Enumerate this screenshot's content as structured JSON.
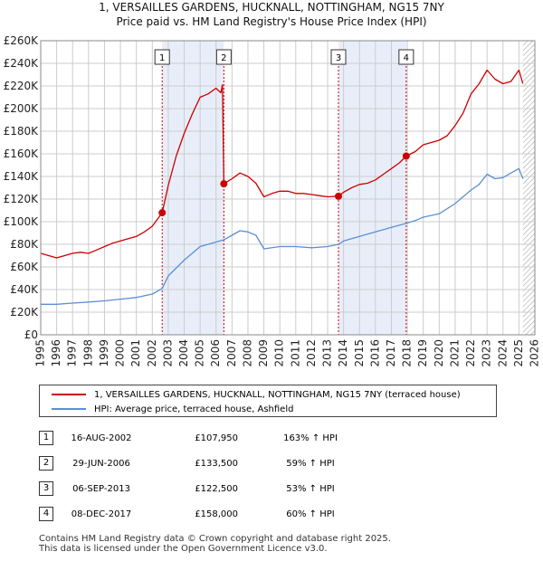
{
  "title": "1, VERSAILLES GARDENS, HUCKNALL, NOTTINGHAM, NG15 7NY",
  "subtitle": "Price paid vs. HM Land Registry's House Price Index (HPI)",
  "colors": {
    "property": "#cc0000",
    "hpi": "#5b8fd4",
    "shade": "#e8eef9",
    "grid": "#cccccc",
    "marker_line": "#cc0000",
    "future_hatch": "#999999"
  },
  "chart_data": {
    "type": "line",
    "title": "1, VERSAILLES GARDENS, HUCKNALL, NOTTINGHAM, NG15 7NY",
    "subtitle": "Price paid vs. HM Land Registry's House Price Index (HPI)",
    "xlabel": "",
    "ylabel": "",
    "xlim": [
      1995,
      2026
    ],
    "ylim": [
      0,
      260000
    ],
    "grid": true,
    "y_ticks": [
      0,
      20000,
      40000,
      60000,
      80000,
      100000,
      120000,
      140000,
      160000,
      180000,
      200000,
      220000,
      240000,
      260000
    ],
    "y_tick_labels": [
      "£0",
      "£20K",
      "£40K",
      "£60K",
      "£80K",
      "£100K",
      "£120K",
      "£140K",
      "£160K",
      "£180K",
      "£200K",
      "£220K",
      "£240K",
      "£260K"
    ],
    "x_ticks": [
      1995,
      1996,
      1997,
      1998,
      1999,
      2000,
      2001,
      2002,
      2003,
      2004,
      2005,
      2006,
      2007,
      2008,
      2009,
      2010,
      2011,
      2012,
      2013,
      2014,
      2015,
      2016,
      2017,
      2018,
      2019,
      2020,
      2021,
      2022,
      2023,
      2024,
      2025,
      2026
    ],
    "x_tick_labels": [
      "1995",
      "1996",
      "1997",
      "1998",
      "1999",
      "2000",
      "2001",
      "2002",
      "2003",
      "2004",
      "2005",
      "2006",
      "2007",
      "2008",
      "2009",
      "2010",
      "2011",
      "2012",
      "2013",
      "2014",
      "2015",
      "2016",
      "2017",
      "2018",
      "2019",
      "2020",
      "2021",
      "2022",
      "2023",
      "2024",
      "2025",
      "2026"
    ],
    "shaded_periods": [
      [
        2002.62,
        2006.49
      ],
      [
        2013.68,
        2017.93
      ]
    ],
    "data_end": 2025.25,
    "series": [
      {
        "name": "1, VERSAILLES GARDENS, HUCKNALL, NOTTINGHAM, NG15 7NY (terraced house)",
        "color": "#cc0000",
        "x": [
          1995.0,
          1995.5,
          1996.0,
          1996.5,
          1997.0,
          1997.5,
          1998.0,
          1998.5,
          1999.0,
          1999.5,
          2000.0,
          2000.5,
          2001.0,
          2001.5,
          2002.0,
          2002.62,
          2003.0,
          2003.5,
          2004.0,
          2004.5,
          2005.0,
          2005.5,
          2006.0,
          2006.3,
          2006.4,
          2006.49,
          2007.0,
          2007.5,
          2008.0,
          2008.5,
          2009.0,
          2009.5,
          2010.0,
          2010.5,
          2011.0,
          2011.5,
          2012.0,
          2012.5,
          2013.0,
          2013.68,
          2014.0,
          2014.5,
          2015.0,
          2015.5,
          2016.0,
          2016.5,
          2017.0,
          2017.5,
          2017.93,
          2018.5,
          2019.0,
          2019.5,
          2020.0,
          2020.5,
          2021.0,
          2021.5,
          2022.0,
          2022.5,
          2023.0,
          2023.5,
          2024.0,
          2024.5,
          2025.0,
          2025.25
        ],
        "values": [
          72000,
          70000,
          68000,
          70000,
          72000,
          73000,
          72000,
          75000,
          78000,
          81000,
          83000,
          85000,
          87000,
          91000,
          96000,
          107950,
          132000,
          158000,
          178000,
          195000,
          210000,
          213000,
          218000,
          214000,
          221000,
          133500,
          138000,
          143000,
          140000,
          134000,
          122000,
          125000,
          127000,
          127000,
          125000,
          125000,
          124000,
          123000,
          122000,
          122500,
          126000,
          130000,
          133000,
          134000,
          137000,
          142000,
          147000,
          152000,
          158000,
          162000,
          168000,
          170000,
          172000,
          176000,
          185000,
          196000,
          213000,
          222000,
          234000,
          226000,
          222000,
          224000,
          234000,
          222000
        ]
      },
      {
        "name": "HPI: Average price, terraced house, Ashfield",
        "color": "#5b8fd4",
        "x": [
          1995.0,
          1996.0,
          1997.0,
          1998.0,
          1999.0,
          2000.0,
          2001.0,
          2002.0,
          2002.62,
          2003.0,
          2004.0,
          2005.0,
          2006.0,
          2006.49,
          2007.0,
          2007.5,
          2008.0,
          2008.5,
          2009.0,
          2010.0,
          2011.0,
          2012.0,
          2013.0,
          2013.68,
          2014.0,
          2015.0,
          2016.0,
          2017.0,
          2017.93,
          2018.5,
          2019.0,
          2020.0,
          2021.0,
          2022.0,
          2022.5,
          2023.0,
          2023.5,
          2024.0,
          2024.5,
          2025.0,
          2025.25
        ],
        "values": [
          27000,
          27000,
          28000,
          29000,
          30000,
          31500,
          33000,
          36000,
          41000,
          52000,
          66000,
          78000,
          82000,
          84000,
          88000,
          92000,
          91000,
          88000,
          76000,
          78000,
          78000,
          77000,
          78000,
          80000,
          83000,
          87000,
          91000,
          95000,
          98500,
          101000,
          104000,
          107000,
          116000,
          128000,
          133000,
          142000,
          138000,
          139000,
          143000,
          147000,
          138000
        ]
      }
    ],
    "sales": [
      {
        "num": "1",
        "x": 2002.62,
        "value": 107950
      },
      {
        "num": "2",
        "x": 2006.49,
        "value": 133500
      },
      {
        "num": "3",
        "x": 2013.68,
        "value": 122500
      },
      {
        "num": "4",
        "x": 2017.93,
        "value": 158000
      }
    ]
  },
  "legend": {
    "property_label": "1, VERSAILLES GARDENS, HUCKNALL, NOTTINGHAM, NG15 7NY (terraced house)",
    "hpi_label": "HPI: Average price, terraced house, Ashfield"
  },
  "sales_table": [
    {
      "num": "1",
      "date": "16-AUG-2002",
      "price": "£107,950",
      "hpi": "163% ↑ HPI"
    },
    {
      "num": "2",
      "date": "29-JUN-2006",
      "price": "£133,500",
      "hpi": "59% ↑ HPI"
    },
    {
      "num": "3",
      "date": "06-SEP-2013",
      "price": "£122,500",
      "hpi": "53% ↑ HPI"
    },
    {
      "num": "4",
      "date": "08-DEC-2017",
      "price": "£158,000",
      "hpi": "60% ↑ HPI"
    }
  ],
  "footer": {
    "line1": "Contains HM Land Registry data © Crown copyright and database right 2025.",
    "line2": "This data is licensed under the Open Government Licence v3.0."
  }
}
